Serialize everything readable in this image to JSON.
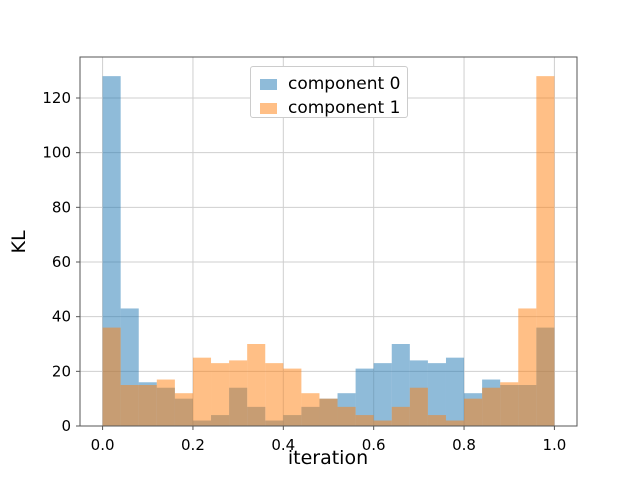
{
  "figure": {
    "background": "#ffffff"
  },
  "legend": {
    "position": "upper center",
    "items": [
      {
        "label": "component 0",
        "swatch_color": "#8fbbd9"
      },
      {
        "label": "component 1",
        "swatch_color": "#ffbf86"
      }
    ]
  },
  "chart_data": {
    "type": "bar",
    "subtype": "histogram-overlaid",
    "title": "",
    "xlabel": "iteration",
    "ylabel": "KL",
    "bin_start": 0.0,
    "bin_width": 0.04,
    "bin_edges": [
      0.0,
      0.04,
      0.08,
      0.12,
      0.16,
      0.2,
      0.24,
      0.28,
      0.32,
      0.36,
      0.4,
      0.44,
      0.48,
      0.52,
      0.56,
      0.6,
      0.64,
      0.68,
      0.72,
      0.76,
      0.8,
      0.84,
      0.88,
      0.92,
      0.96,
      1.0
    ],
    "series": [
      {
        "name": "component 0",
        "color": "#1f77b4",
        "opacity": 0.5,
        "values": [
          128,
          43,
          16,
          14,
          10,
          2,
          4,
          14,
          7,
          2,
          4,
          7,
          10,
          12,
          21,
          23,
          30,
          24,
          23,
          25,
          12,
          17,
          15,
          15,
          36
        ]
      },
      {
        "name": "component 1",
        "color": "#ff7f0e",
        "opacity": 0.5,
        "values": [
          36,
          15,
          15,
          17,
          12,
          25,
          23,
          24,
          30,
          23,
          21,
          12,
          10,
          7,
          4,
          2,
          7,
          14,
          4,
          2,
          10,
          14,
          16,
          43,
          128
        ]
      }
    ],
    "xlim": [
      -0.05,
      1.05
    ],
    "ylim": [
      0,
      135
    ],
    "x_tick_values": [
      0.0,
      0.2,
      0.4,
      0.6,
      0.8,
      1.0
    ],
    "x_tick_labels": [
      "0.0",
      "0.2",
      "0.4",
      "0.6",
      "0.8",
      "1.0"
    ],
    "y_tick_values": [
      0,
      20,
      40,
      60,
      80,
      100,
      120
    ],
    "y_tick_labels": [
      "0",
      "20",
      "40",
      "60",
      "80",
      "100",
      "120"
    ],
    "grid": true,
    "grid_color": "#cfcfcf",
    "spine_color": "#555555",
    "legend_position": "upper center"
  }
}
